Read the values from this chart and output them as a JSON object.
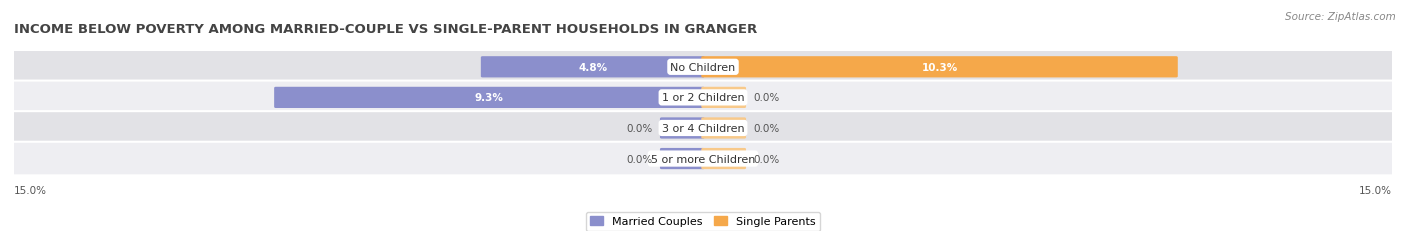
{
  "title": "INCOME BELOW POVERTY AMONG MARRIED-COUPLE VS SINGLE-PARENT HOUSEHOLDS IN GRANGER",
  "source": "Source: ZipAtlas.com",
  "categories": [
    "No Children",
    "1 or 2 Children",
    "3 or 4 Children",
    "5 or more Children"
  ],
  "married_values": [
    4.8,
    9.3,
    0.0,
    0.0
  ],
  "single_values": [
    10.3,
    0.0,
    0.0,
    0.0
  ],
  "xlim": 15.0,
  "married_color": "#8b8fcc",
  "single_color": "#f5a84a",
  "single_color_light": "#f8c98a",
  "row_bg_colors": [
    "#e2e2e6",
    "#eeeef2",
    "#e2e2e6",
    "#eeeef2"
  ],
  "bar_height": 0.62,
  "title_fontsize": 9.5,
  "label_fontsize": 8.0,
  "value_fontsize": 7.5,
  "source_fontsize": 7.5,
  "legend_fontsize": 8.0,
  "axis_label_15_left": "15.0%",
  "axis_label_15_right": "15.0%"
}
